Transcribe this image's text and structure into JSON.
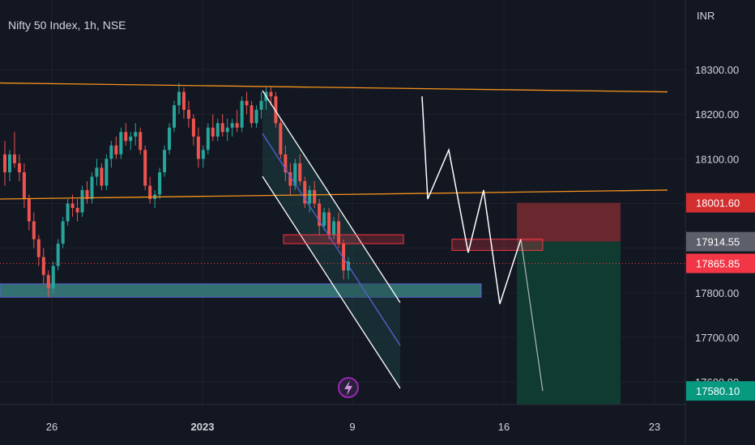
{
  "header": {
    "title": "Nifty 50 Index, 1h, NSE",
    "currency": "INR"
  },
  "colors": {
    "background": "#131722",
    "up": "#26a69a",
    "down": "#ef5350",
    "resistance": "#f7931a",
    "channel": "#ffffff",
    "mean_line": "#5b5fd6",
    "support_zone": "#3f8f8c",
    "stop_zone": "#7a2a30",
    "target_zone": "#0f3d33",
    "current_price_tag": "#f23645",
    "entry_tag": "#5d606b",
    "stop_tag": "#d32f2f",
    "target_tag": "#089981"
  },
  "chart_data": {
    "type": "candlestick",
    "title": "Nifty 50 Index, 1h, NSE",
    "y_axis": {
      "label": "INR",
      "ticks": [
        18300,
        18200,
        18100,
        18000,
        17900,
        17800,
        17700,
        17600
      ],
      "tick_labels": [
        "18300.00",
        "18200.00",
        "18100.00",
        "",
        "",
        "17800.00",
        "17700.00",
        "17600.00"
      ],
      "ylim": [
        17545,
        18380
      ]
    },
    "x_axis": {
      "tick_labels": [
        "26",
        "2023",
        "9",
        "16",
        "23"
      ],
      "tick_bold": [
        false,
        true,
        false,
        false,
        false
      ]
    },
    "price_tags": [
      {
        "label": "18001.60",
        "value": 18001.6,
        "role": "stop"
      },
      {
        "label": "17914.55",
        "value": 17914.55,
        "role": "entry"
      },
      {
        "label": "17865.85",
        "value": 17865.85,
        "role": "last"
      },
      {
        "label": "17580.10",
        "value": 17580.1,
        "role": "target"
      }
    ],
    "candles": [
      [
        18110,
        18140,
        18040,
        18070
      ],
      [
        18070,
        18120,
        18050,
        18110
      ],
      [
        18110,
        18160,
        18080,
        18090
      ],
      [
        18090,
        18110,
        18050,
        18070
      ],
      [
        18070,
        18090,
        17990,
        18010
      ],
      [
        18010,
        18020,
        17940,
        17960
      ],
      [
        17960,
        17980,
        17900,
        17920
      ],
      [
        17920,
        17930,
        17860,
        17880
      ],
      [
        17880,
        17900,
        17820,
        17840
      ],
      [
        17840,
        17850,
        17790,
        17810
      ],
      [
        17810,
        17870,
        17800,
        17860
      ],
      [
        17860,
        17920,
        17850,
        17910
      ],
      [
        17910,
        17970,
        17900,
        17960
      ],
      [
        17960,
        18010,
        17950,
        18000
      ],
      [
        18000,
        18020,
        17970,
        17990
      ],
      [
        17990,
        18010,
        17960,
        17980
      ],
      [
        17980,
        18040,
        17970,
        18030
      ],
      [
        18030,
        18050,
        18000,
        18010
      ],
      [
        18010,
        18070,
        18000,
        18060
      ],
      [
        18060,
        18100,
        18040,
        18080
      ],
      [
        18080,
        18090,
        18030,
        18040
      ],
      [
        18040,
        18110,
        18030,
        18100
      ],
      [
        18100,
        18140,
        18080,
        18130
      ],
      [
        18130,
        18150,
        18100,
        18110
      ],
      [
        18110,
        18170,
        18100,
        18160
      ],
      [
        18160,
        18180,
        18130,
        18140
      ],
      [
        18140,
        18160,
        18120,
        18150
      ],
      [
        18150,
        18180,
        18130,
        18160
      ],
      [
        18160,
        18170,
        18110,
        18120
      ],
      [
        18120,
        18130,
        18030,
        18040
      ],
      [
        18040,
        18060,
        18000,
        18010
      ],
      [
        18010,
        18030,
        17990,
        18020
      ],
      [
        18020,
        18080,
        18010,
        18070
      ],
      [
        18070,
        18130,
        18060,
        18120
      ],
      [
        18120,
        18180,
        18110,
        18170
      ],
      [
        18170,
        18230,
        18160,
        18220
      ],
      [
        18220,
        18270,
        18200,
        18250
      ],
      [
        18250,
        18260,
        18190,
        18210
      ],
      [
        18210,
        18230,
        18170,
        18190
      ],
      [
        18190,
        18200,
        18130,
        18150
      ],
      [
        18150,
        18170,
        18080,
        18100
      ],
      [
        18100,
        18130,
        18080,
        18120
      ],
      [
        18120,
        18180,
        18110,
        18170
      ],
      [
        18170,
        18200,
        18140,
        18150
      ],
      [
        18150,
        18190,
        18140,
        18180
      ],
      [
        18180,
        18200,
        18150,
        18160
      ],
      [
        18160,
        18190,
        18140,
        18170
      ],
      [
        18170,
        18190,
        18150,
        18180
      ],
      [
        18180,
        18210,
        18160,
        18170
      ],
      [
        18170,
        18240,
        18160,
        18230
      ],
      [
        18230,
        18250,
        18200,
        18220
      ],
      [
        18220,
        18230,
        18170,
        18180
      ],
      [
        18180,
        18220,
        18170,
        18210
      ],
      [
        18210,
        18250,
        18190,
        18230
      ],
      [
        18230,
        18260,
        18210,
        18250
      ],
      [
        18250,
        18260,
        18220,
        18240
      ],
      [
        18240,
        18250,
        18170,
        18180
      ],
      [
        18180,
        18190,
        18100,
        18110
      ],
      [
        18110,
        18130,
        18050,
        18070
      ],
      [
        18070,
        18090,
        18020,
        18040
      ],
      [
        18040,
        18100,
        18030,
        18090
      ],
      [
        18090,
        18110,
        18040,
        18050
      ],
      [
        18050,
        18060,
        17990,
        18000
      ],
      [
        18000,
        18040,
        17980,
        18030
      ],
      [
        18030,
        18050,
        17990,
        18000
      ],
      [
        18000,
        18010,
        17930,
        17950
      ],
      [
        17950,
        17990,
        17940,
        17980
      ],
      [
        17980,
        17990,
        17920,
        17930
      ],
      [
        17930,
        17970,
        17920,
        17960
      ],
      [
        17960,
        17980,
        17900,
        17910
      ],
      [
        17910,
        17920,
        17830,
        17850
      ],
      [
        17850,
        17880,
        17830,
        17870
      ]
    ]
  },
  "annotations": {
    "resistance_lines": [
      {
        "name": "upper-resistance",
        "from_price": 18270,
        "to_price": 18250
      },
      {
        "name": "lower-resistance",
        "from_price": 18010,
        "to_price": 18030
      }
    ],
    "support_zone": {
      "top": 17820,
      "bottom": 17790
    },
    "supply_boxes": [
      {
        "top": 17930,
        "bottom": 17910
      },
      {
        "top": 17920,
        "bottom": 17895
      }
    ],
    "trade": {
      "stop": 18001.6,
      "entry": 17914.55,
      "target": 17580.1
    },
    "forecast_path": [
      18240,
      18010,
      18120,
      17890,
      18030,
      17775,
      17920
    ],
    "forecast_leg_end": 17580
  }
}
